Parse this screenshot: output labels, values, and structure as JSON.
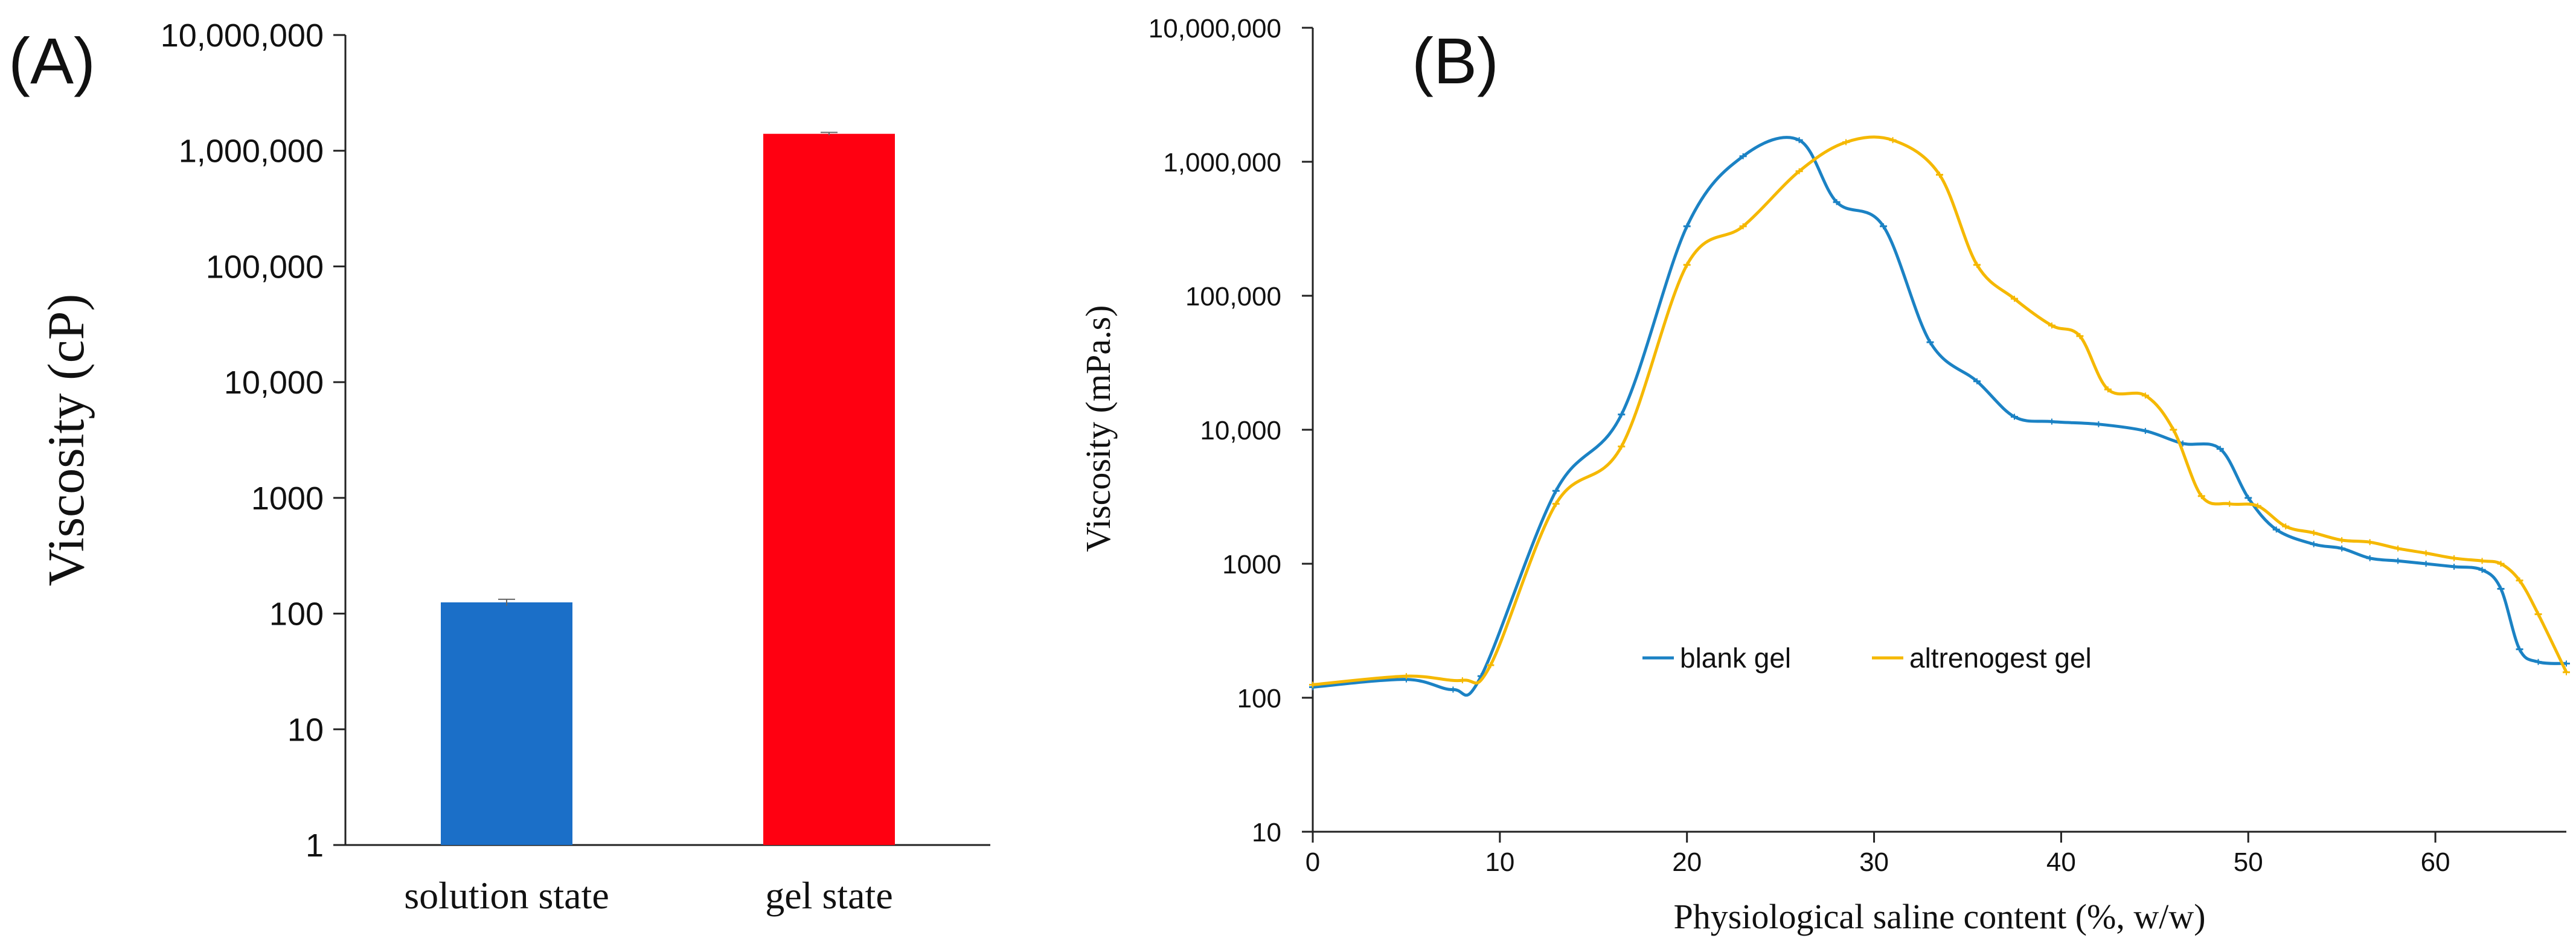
{
  "chart_data": [
    {
      "type": "bar",
      "panel_label": "(A)",
      "ylabel": "Viscosity (cP)",
      "yscale": "log",
      "ylim": [
        1,
        10000000
      ],
      "yticks": [
        1,
        10,
        100,
        1000,
        10000,
        100000,
        1000000,
        10000000
      ],
      "ytick_labels": [
        "1",
        "10",
        "100",
        "1000",
        "10,000",
        "100,000",
        "1,000,000",
        "10,000,000"
      ],
      "categories": [
        "solution state",
        "gel state"
      ],
      "values": [
        125,
        1400000
      ],
      "errors": [
        8,
        40000
      ],
      "colors": [
        "#1b6fc8",
        "#ff0011"
      ]
    },
    {
      "type": "line",
      "panel_label": "(B)",
      "xlabel": "Physiological saline content (%, w/w)",
      "ylabel": "Viscosity (mPa.s)",
      "yscale": "log",
      "xlim": [
        0,
        67
      ],
      "ylim": [
        10,
        10000000
      ],
      "xticks": [
        0,
        10,
        20,
        30,
        40,
        50,
        60
      ],
      "xtick_labels": [
        "0",
        "10",
        "20",
        "30",
        "40",
        "50",
        "60"
      ],
      "yticks": [
        10,
        100,
        1000,
        10000,
        100000,
        1000000,
        10000000
      ],
      "ytick_labels": [
        "10",
        "100",
        "1000",
        "10,000",
        "100,000",
        "1,000,000",
        "10,000,000"
      ],
      "legend_position": "center-left",
      "series": [
        {
          "name": "blank gel",
          "color": "#1b82c4",
          "x": [
            0,
            5,
            7.5,
            9,
            13,
            16.5,
            20,
            23,
            26,
            28,
            30.5,
            33,
            35.5,
            37.5,
            39.5,
            42,
            44.5,
            46.5,
            48.5,
            50,
            51.5,
            53.5,
            55,
            56.5,
            58,
            59.5,
            61,
            62.5,
            63.5,
            64.5,
            65.5,
            67
          ],
          "y": [
            120,
            137,
            115,
            145,
            3500,
            13000,
            330000,
            1100000,
            1450000,
            500000,
            330000,
            45000,
            23000,
            12500,
            11500,
            11000,
            9800,
            7900,
            7200,
            3100,
            1800,
            1400,
            1300,
            1100,
            1050,
            1000,
            950,
            900,
            650,
            230,
            185,
            180
          ]
        },
        {
          "name": "altrenogest gel",
          "color": "#f5b800",
          "x": [
            0,
            5,
            8,
            9.5,
            13,
            16.5,
            20,
            23,
            26,
            28.5,
            31,
            33.5,
            35.5,
            37.5,
            39.5,
            41,
            42.5,
            44.5,
            46,
            47.5,
            49,
            50.5,
            52,
            53.5,
            55,
            56.5,
            58,
            59.5,
            61,
            62.5,
            63.5,
            64.5,
            65.5,
            67
          ],
          "y": [
            125,
            145,
            135,
            175,
            2800,
            7500,
            170000,
            330000,
            850000,
            1400000,
            1450000,
            800000,
            170000,
            95000,
            60000,
            50000,
            20000,
            18000,
            10000,
            3200,
            2800,
            2700,
            1900,
            1700,
            1500,
            1450,
            1300,
            1200,
            1100,
            1050,
            1000,
            750,
            420,
            155
          ]
        }
      ]
    }
  ]
}
